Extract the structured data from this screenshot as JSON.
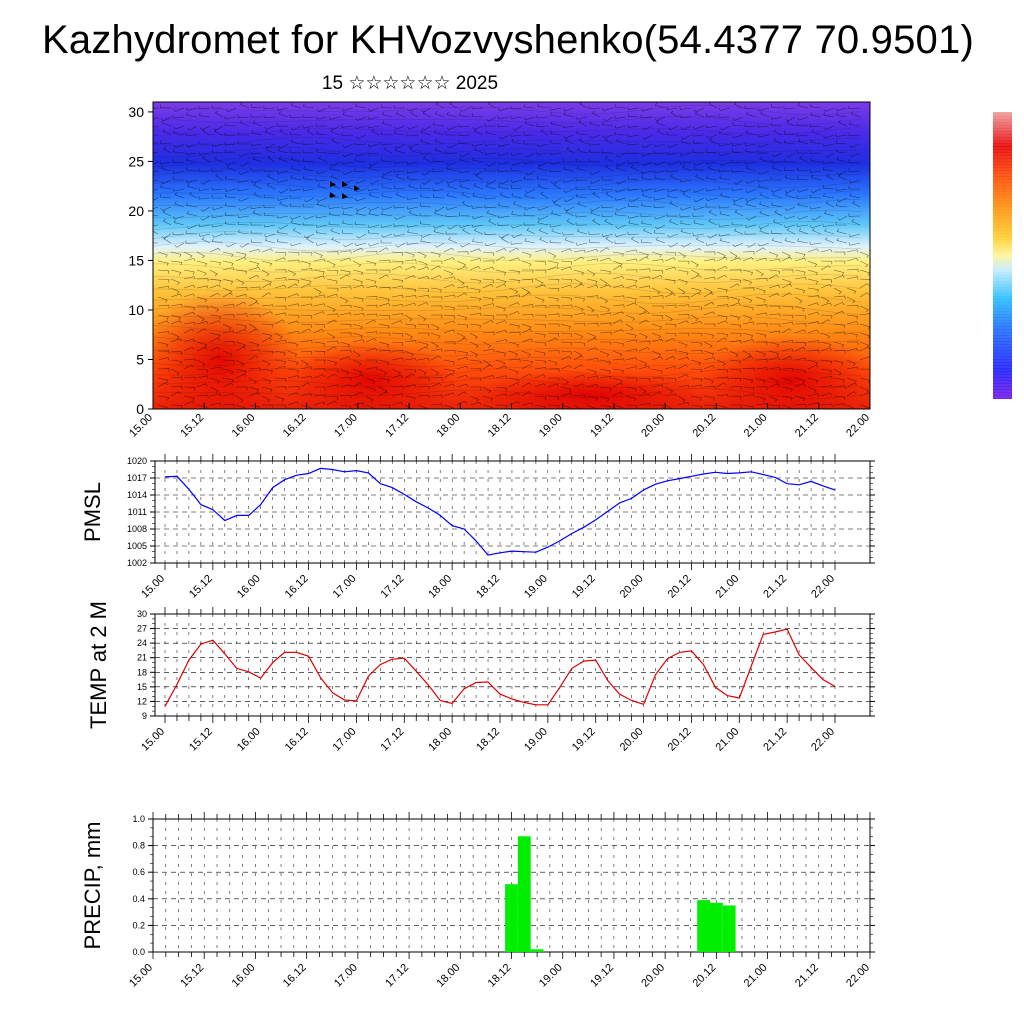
{
  "title": "Kazhydromet for KHVozvyshenko(54.4377 70.9501)",
  "subtitle": "15 ☆☆☆☆☆☆ 2025",
  "colors": {
    "pmsl": "#0000ff",
    "temp": "#e00000",
    "precip": "#00ee00"
  },
  "chart_data": [
    {
      "type": "heatmap",
      "name": "vertical cross-section",
      "x_ticks": [
        "15.00",
        "15.12",
        "16.00",
        "16.12",
        "17.00",
        "17.12",
        "18.00",
        "18.12",
        "19.00",
        "19.12",
        "20.00",
        "20.12",
        "21.00",
        "21.12",
        "22.00"
      ],
      "y_ticks": [
        0,
        5,
        10,
        15,
        20,
        25,
        30
      ],
      "ylim": [
        0,
        31
      ],
      "colorbar": "rainbow (blue to red), no labels"
    },
    {
      "type": "line",
      "ylabel": "PMSL",
      "x_ticks": [
        "15.00",
        "15.12",
        "16.00",
        "16.12",
        "17.00",
        "17.12",
        "18.00",
        "18.12",
        "19.00",
        "19.12",
        "20.00",
        "20.12",
        "21.00",
        "21.12",
        "22.00"
      ],
      "y_ticks": [
        1002,
        1005,
        1008,
        1011,
        1014,
        1017,
        1020
      ],
      "ylim": [
        1002,
        1020
      ],
      "grid": true,
      "x": [
        0,
        3,
        6,
        9,
        12,
        15,
        18,
        21,
        24,
        27,
        30,
        33,
        36,
        39,
        42,
        45,
        48,
        51,
        54,
        57,
        60,
        63,
        66,
        69,
        72,
        75,
        78,
        81,
        84,
        87,
        90,
        93,
        96,
        99,
        102,
        105,
        108,
        111,
        114,
        117,
        120,
        123,
        126,
        129,
        132,
        135,
        138,
        141,
        144,
        147,
        150,
        153,
        156,
        159,
        162,
        165,
        168
      ],
      "values": [
        1017.2,
        1017.3,
        1015,
        1012.3,
        1011.4,
        1009.5,
        1010.4,
        1010.4,
        1012.3,
        1015.3,
        1016.7,
        1017.5,
        1017.8,
        1018.7,
        1018.5,
        1018.1,
        1018.3,
        1017.9,
        1016,
        1015.3,
        1014.1,
        1012.8,
        1011.7,
        1010.4,
        1008.6,
        1008,
        1005.9,
        1003.4,
        1003.8,
        1004.1,
        1004,
        1003.9,
        1004.8,
        1005.9,
        1007.2,
        1008.3,
        1009.6,
        1011.1,
        1012.6,
        1013.4,
        1014.9,
        1015.9,
        1016.5,
        1016.9,
        1017.3,
        1017.7,
        1018,
        1017.8,
        1017.9,
        1018.1,
        1017.6,
        1017.1,
        1016,
        1015.8,
        1016.4,
        1015.6,
        1014.9
      ]
    },
    {
      "type": "line",
      "ylabel": "TEMP at 2 M",
      "x_ticks": [
        "15.00",
        "15.12",
        "16.00",
        "16.12",
        "17.00",
        "17.12",
        "18.00",
        "18.12",
        "19.00",
        "19.12",
        "20.00",
        "20.12",
        "21.00",
        "21.12",
        "22.00"
      ],
      "y_ticks": [
        9,
        12,
        15,
        18,
        21,
        24,
        27,
        30
      ],
      "ylim": [
        9,
        30
      ],
      "grid": true,
      "x": [
        0,
        3,
        6,
        9,
        12,
        15,
        18,
        21,
        24,
        27,
        30,
        33,
        36,
        39,
        42,
        45,
        48,
        51,
        54,
        57,
        60,
        63,
        66,
        69,
        72,
        75,
        78,
        81,
        84,
        87,
        90,
        93,
        96,
        99,
        102,
        105,
        108,
        111,
        114,
        117,
        120,
        123,
        126,
        129,
        132,
        135,
        138,
        141,
        144,
        147,
        150,
        153,
        156,
        159,
        162,
        165,
        168
      ],
      "values": [
        11,
        15.5,
        20.5,
        23.8,
        24.6,
        21.8,
        18.8,
        18.1,
        16.8,
        20,
        22.1,
        22.1,
        21.3,
        16.9,
        13.8,
        12.3,
        12.1,
        17.2,
        19.6,
        20.7,
        20.9,
        18.2,
        15.4,
        12.2,
        11.6,
        14.6,
        15.9,
        16,
        13.5,
        12.5,
        11.8,
        11.3,
        11.3,
        14.9,
        18.8,
        20.3,
        20.5,
        16.3,
        13.5,
        12.2,
        11.4,
        17.5,
        20.8,
        22.1,
        22.4,
        19.6,
        14.9,
        13.2,
        12.7,
        19.3,
        25.8,
        26.3,
        26.9,
        21.6,
        19,
        16.5,
        15.1
      ]
    },
    {
      "type": "bar",
      "ylabel": "PRECIP, mm",
      "x_ticks": [
        "15.00",
        "15.12",
        "16.00",
        "16.12",
        "17.00",
        "17.12",
        "18.00",
        "18.12",
        "19.00",
        "19.12",
        "20.00",
        "20.12",
        "21.00",
        "21.12",
        "22.00"
      ],
      "y_ticks": [
        0.0,
        0.2,
        0.4,
        0.6,
        0.8,
        1.0
      ],
      "ylim": [
        0,
        1.0
      ],
      "grid": true,
      "x": [
        84,
        87,
        90,
        129,
        132,
        135
      ],
      "values": [
        0.51,
        0.87,
        0.02,
        0.39,
        0.37,
        0.35
      ]
    }
  ]
}
